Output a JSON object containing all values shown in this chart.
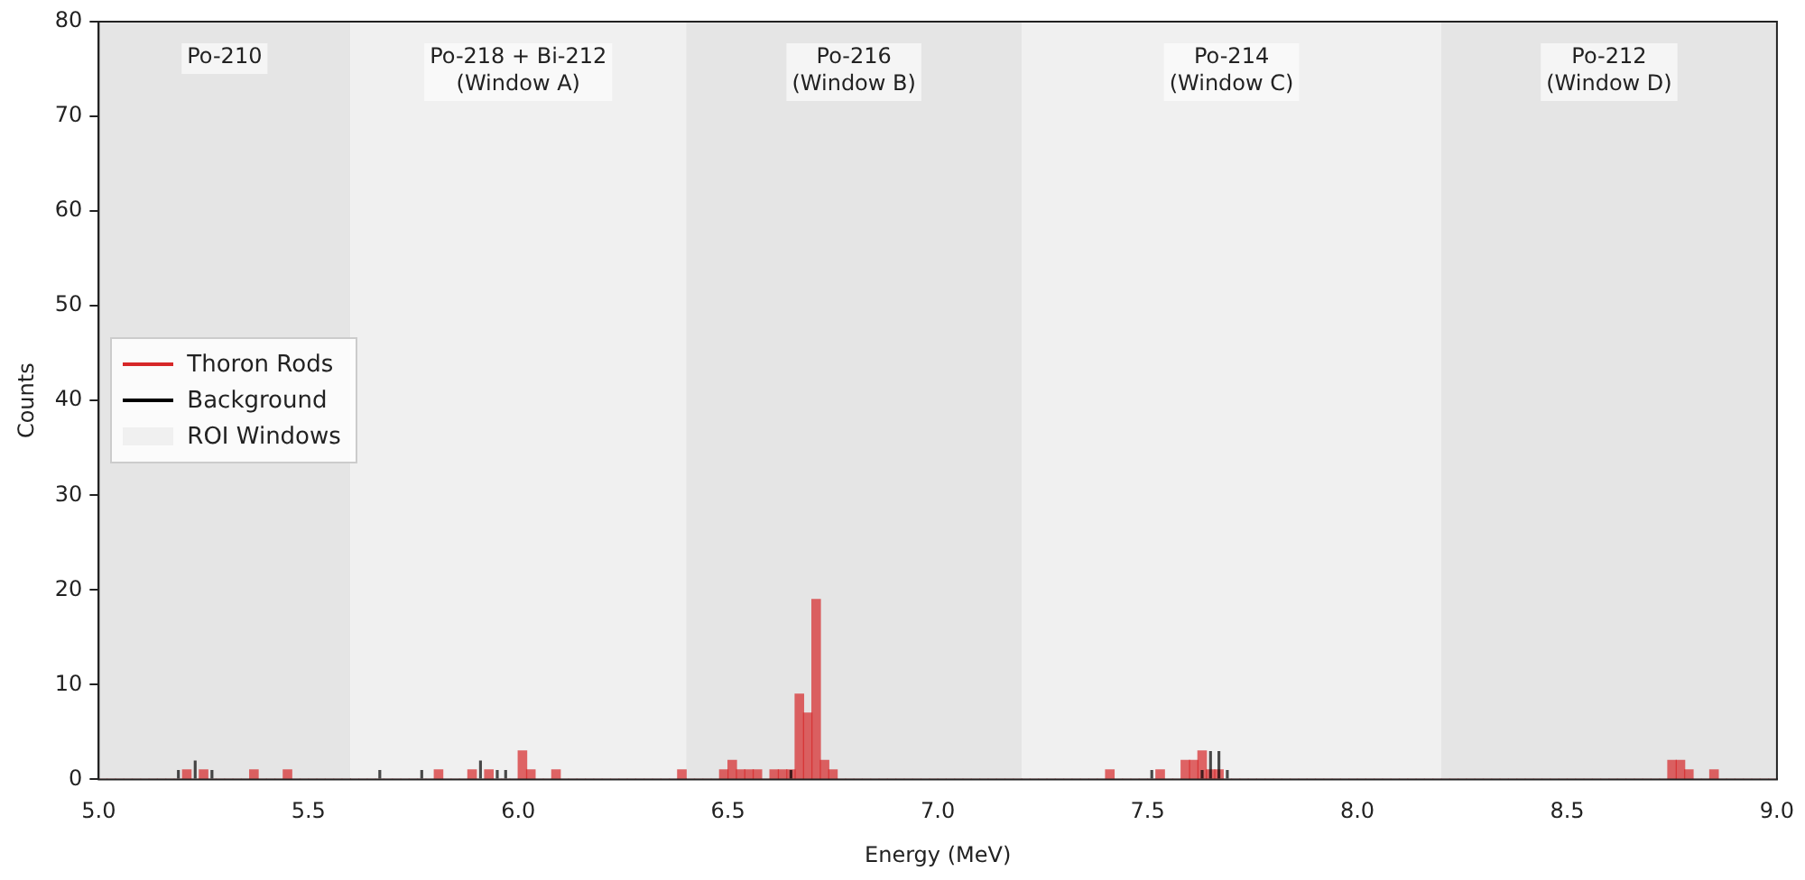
{
  "chart_data": {
    "type": "histogram",
    "xlabel": "Energy (MeV)",
    "ylabel": "Counts",
    "bins": [
      5,
      5.02,
      5.04,
      5.06,
      5.08,
      5.1,
      5.12,
      5.14,
      5.16,
      5.18,
      5.2,
      5.22,
      5.24,
      5.26,
      5.28,
      5.3,
      5.32,
      5.34,
      5.36,
      5.38,
      5.4,
      5.42,
      5.44,
      5.46,
      5.48,
      5.5,
      5.52,
      5.54,
      5.56,
      5.58,
      5.6,
      5.62,
      5.64,
      5.66,
      5.68,
      5.7,
      5.72,
      5.74,
      5.76,
      5.78,
      5.8,
      5.82,
      5.84,
      5.86,
      5.88,
      5.9,
      5.92,
      5.94,
      5.96,
      5.98,
      6,
      6.02,
      6.04,
      6.06,
      6.08,
      6.1,
      6.12,
      6.14,
      6.16,
      6.18,
      6.2,
      6.22,
      6.24,
      6.26,
      6.28,
      6.3,
      6.32,
      6.34,
      6.36,
      6.38,
      6.4,
      6.42,
      6.44,
      6.46,
      6.48,
      6.5,
      6.52,
      6.54,
      6.56,
      6.58,
      6.6,
      6.62,
      6.64,
      6.66,
      6.68,
      6.7,
      6.72,
      6.74,
      6.76,
      6.78,
      6.8,
      6.82,
      6.84,
      6.86,
      6.88,
      6.9,
      6.92,
      6.94,
      6.96,
      6.98,
      7,
      7.02,
      7.04,
      7.06,
      7.08,
      7.1,
      7.12,
      7.14,
      7.16,
      7.18,
      7.2,
      7.22,
      7.24,
      7.26,
      7.28,
      7.3,
      7.32,
      7.34,
      7.36,
      7.38,
      7.4,
      7.42,
      7.44,
      7.46,
      7.48,
      7.5,
      7.52,
      7.54,
      7.56,
      7.58,
      7.6,
      7.62,
      7.64,
      7.66,
      7.68,
      7.7,
      7.72,
      7.74,
      7.76,
      7.78,
      7.8,
      7.82,
      7.84,
      7.86,
      7.88,
      7.9,
      7.92,
      7.94,
      7.96,
      7.98,
      8,
      8.02,
      8.04,
      8.06,
      8.08,
      8.1,
      8.12,
      8.14,
      8.16,
      8.18,
      8.2,
      8.22,
      8.24,
      8.26,
      8.28,
      8.3,
      8.32,
      8.34,
      8.36,
      8.38,
      8.4,
      8.42,
      8.44,
      8.46,
      8.48,
      8.5,
      8.52,
      8.54,
      8.56,
      8.58,
      8.6,
      8.62,
      8.64,
      8.66,
      8.68,
      8.7,
      8.72,
      8.74,
      8.76,
      8.78,
      8.8,
      8.82,
      8.84,
      8.86,
      8.88,
      8.9,
      8.92,
      8.94,
      8.96,
      8.98,
      9
    ],
    "series": [
      {
        "name": "Thoron Rods",
        "color": "#d62728",
        "values": [
          0,
          0,
          0,
          0,
          0,
          0,
          0,
          0,
          0,
          0,
          1,
          0,
          1,
          0,
          0,
          0,
          0,
          0,
          1,
          0,
          0,
          0,
          1,
          0,
          0,
          0,
          0,
          0,
          0,
          0,
          0,
          0,
          0,
          0,
          0,
          0,
          0,
          0,
          0,
          0,
          1,
          0,
          0,
          0,
          1,
          0,
          1,
          0,
          0,
          0,
          3,
          1,
          0,
          0,
          1,
          0,
          0,
          0,
          0,
          0,
          0,
          0,
          0,
          0,
          0,
          0,
          0,
          0,
          0,
          1,
          0,
          0,
          0,
          0,
          1,
          2,
          1,
          1,
          1,
          0,
          1,
          1,
          1,
          9,
          7,
          19,
          2,
          1,
          0,
          0,
          0,
          0,
          0,
          0,
          0,
          0,
          0,
          0,
          0,
          0,
          0,
          0,
          0,
          0,
          0,
          0,
          0,
          0,
          0,
          0,
          0,
          0,
          0,
          0,
          0,
          0,
          0,
          0,
          0,
          0,
          1,
          0,
          0,
          0,
          0,
          0,
          1,
          0,
          0,
          2,
          2,
          3,
          1,
          1,
          0,
          0,
          0,
          0,
          0,
          0,
          0,
          0,
          0,
          0,
          0,
          0,
          0,
          0,
          0,
          0,
          0,
          0,
          0,
          0,
          0,
          0,
          0,
          0,
          0,
          0,
          0,
          0,
          0,
          0,
          0,
          0,
          0,
          0,
          0,
          0,
          0,
          0,
          0,
          0,
          0,
          0,
          0,
          0,
          0,
          0,
          0,
          0,
          0,
          0,
          0,
          0,
          0,
          2,
          2,
          1,
          0,
          0,
          1,
          0,
          0,
          0,
          0,
          0,
          0,
          0
        ]
      },
      {
        "name": "Background",
        "color": "#000000",
        "values": [
          0,
          0,
          0,
          0,
          0,
          0,
          0,
          0,
          0,
          1,
          0,
          2,
          0,
          1,
          0,
          0,
          0,
          0,
          0,
          0,
          0,
          0,
          0,
          0,
          0,
          0,
          0,
          0,
          0,
          0,
          0,
          0,
          0,
          1,
          0,
          0,
          0,
          0,
          1,
          0,
          0,
          0,
          0,
          0,
          0,
          2,
          0,
          1,
          1,
          0,
          0,
          0,
          0,
          0,
          0,
          0,
          0,
          0,
          0,
          0,
          0,
          0,
          0,
          0,
          0,
          0,
          0,
          0,
          0,
          0,
          0,
          0,
          0,
          0,
          0,
          0,
          0,
          0,
          0,
          0,
          0,
          0,
          1,
          0,
          0,
          0,
          0,
          0,
          0,
          0,
          0,
          0,
          0,
          0,
          0,
          0,
          0,
          0,
          0,
          0,
          0,
          0,
          0,
          0,
          0,
          0,
          0,
          0,
          0,
          0,
          0,
          0,
          0,
          0,
          0,
          0,
          0,
          0,
          0,
          0,
          0,
          0,
          0,
          0,
          0,
          1,
          0,
          0,
          0,
          0,
          0,
          1,
          3,
          3,
          1,
          0,
          0,
          0,
          0,
          0,
          0,
          0,
          0,
          0,
          0,
          0,
          0,
          0,
          0,
          0,
          0,
          0,
          0,
          0,
          0,
          0,
          0,
          0,
          0,
          0,
          0,
          0,
          0,
          0,
          0,
          0,
          0,
          0,
          0,
          0,
          0,
          0,
          0,
          0,
          0,
          0,
          0,
          0,
          0,
          0,
          0,
          0,
          0,
          0,
          0,
          0,
          0,
          0,
          0,
          0,
          0,
          0,
          0,
          0,
          0,
          0,
          0,
          0,
          0,
          0
        ]
      }
    ],
    "xlim": [
      5,
      9
    ],
    "xticks": [
      {
        "value": 5,
        "label": "5.0"
      },
      5.5,
      {
        "value": 6,
        "label": "6.0"
      },
      6.5,
      {
        "value": 7,
        "label": "7.0"
      },
      7.5,
      {
        "value": 8,
        "label": "8.0"
      },
      8.5,
      {
        "value": 9,
        "label": "9.0"
      }
    ],
    "ylim": [
      0,
      80
    ],
    "yticks": [
      0,
      10,
      20,
      30,
      40,
      50,
      60,
      70,
      80
    ],
    "bands": [
      {
        "axis": "x",
        "from": 5,
        "to": 5.6,
        "label": "Po-210",
        "color": "#e5e5e5"
      },
      {
        "axis": "x",
        "from": 5.6,
        "to": 6.4,
        "label": "Po-218 + Bi-212\n(Window A)",
        "color": "#f0f0f0"
      },
      {
        "axis": "x",
        "from": 6.4,
        "to": 7.2,
        "label": "Po-216\n(Window B)",
        "color": "#e5e5e5"
      },
      {
        "axis": "x",
        "from": 7.2,
        "to": 8.2,
        "label": "Po-214\n(Window C)",
        "color": "#f0f0f0"
      },
      {
        "axis": "x",
        "from": 8.2,
        "to": 9,
        "label": "Po-212\n(Window D)",
        "color": "#e5e5e5"
      }
    ],
    "annotations": [
      "ROI Windows"
    ],
    "legend": "center left",
    "grid": false
  }
}
